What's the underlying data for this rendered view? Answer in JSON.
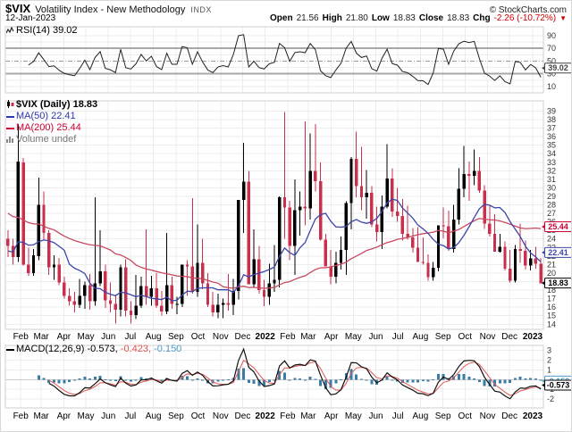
{
  "header": {
    "symbol": "$VIX",
    "name": "Volatility Index - New Methodology",
    "exchange": "INDX",
    "copyright": "© StockCharts.com",
    "date": "12-Jan-2023",
    "quote": {
      "open_label": "Open",
      "open": "21.56",
      "high_label": "High",
      "high": "21.80",
      "low_label": "Low",
      "low": "18.83",
      "close_label": "Close",
      "close": "18.83",
      "chg_label": "Chg",
      "chg": "-2.26 (-10.72%)",
      "chg_arrow": "▼"
    }
  },
  "rsi_panel": {
    "legend": "RSI(14)",
    "value": "39.02"
  },
  "main_panel": {
    "legend_symbol": "$VIX (Daily)",
    "legend_value": "18.83",
    "ma50_label": "MA(50)",
    "ma50_value": "22.41",
    "ma200_label": "MA(200)",
    "ma200_value": "25.44",
    "volume_label": "Volume",
    "volume_value": "undef"
  },
  "macd_panel": {
    "legend": "MACD(12,26,9)",
    "v1": "-0.573,",
    "v2": "-0.423,",
    "v3": "-0.150"
  },
  "colors": {
    "candle_up": "#000000",
    "candle_down": "#c9304e",
    "ma50": "#3e46a8",
    "ma200": "#c9485f",
    "rsi_line": "#222222",
    "macd_line": "#111111",
    "signal_line": "#e05555",
    "histogram": "#3a7ca5",
    "grid": "#ececec",
    "band": "#a8a8a8",
    "frame": "#cfcfcf",
    "axis_text": "#333333",
    "chg_red": "#cc0000",
    "label_rsi_box": "#444444",
    "label_ma200_box": "#cc0033",
    "label_ma50_box": "#3e46a8",
    "label_close_box": "#000000",
    "label_hist_box": "#4f9bc8",
    "label_macd_box": "#000000"
  },
  "chart_data": {
    "type": "candlestick-with-indicators",
    "title": "$VIX Volatility Index - New Methodology",
    "x_range": "mid-Jan-2021 to 12-Jan-2023, weekly bars [open,high,low,close]",
    "main_ylim": [
      14,
      39
    ],
    "rsi_ylim": [
      0,
      100
    ],
    "macd_ylim": [
      -2.9,
      3.5
    ],
    "main_ticks": [
      39,
      38,
      37,
      36,
      35,
      34,
      33,
      32,
      31,
      30,
      29,
      28,
      27,
      26,
      25,
      24,
      23,
      22,
      21,
      20,
      19,
      18,
      17,
      16,
      15,
      14
    ],
    "rsi_ticks": [
      90,
      70,
      50,
      30,
      10
    ],
    "rsi_bands": [
      70,
      30
    ],
    "rsi_mid": 50,
    "macd_ticks": [
      3,
      2,
      1,
      -1,
      -2
    ],
    "months": [
      {
        "label": "Feb",
        "wk": 3.0
      },
      {
        "label": "Mar",
        "wk": 7.0
      },
      {
        "label": "Apr",
        "wk": 11.4
      },
      {
        "label": "May",
        "wk": 15.7
      },
      {
        "label": "Jun",
        "wk": 20.1
      },
      {
        "label": "Jul",
        "wk": 24.4
      },
      {
        "label": "Aug",
        "wk": 28.9
      },
      {
        "label": "Sep",
        "wk": 33.3
      },
      {
        "label": "Oct",
        "wk": 37.6
      },
      {
        "label": "Nov",
        "wk": 42.0
      },
      {
        "label": "Dec",
        "wk": 46.3
      },
      {
        "label": "2022",
        "wk": 50.7,
        "bold": true
      },
      {
        "label": "Feb",
        "wk": 55.1
      },
      {
        "label": "Mar",
        "wk": 59.1
      },
      {
        "label": "Apr",
        "wk": 63.6
      },
      {
        "label": "May",
        "wk": 67.9
      },
      {
        "label": "Jun",
        "wk": 72.3
      },
      {
        "label": "Jul",
        "wk": 76.6
      },
      {
        "label": "Aug",
        "wk": 81.0
      },
      {
        "label": "Sep",
        "wk": 85.4
      },
      {
        "label": "Oct",
        "wk": 89.7
      },
      {
        "label": "Nov",
        "wk": 94.1
      },
      {
        "label": "Dec",
        "wk": 98.4
      },
      {
        "label": "2023",
        "wk": 102.9,
        "bold": true
      }
    ],
    "value_labels": [
      {
        "panel": "rsi",
        "value": 39.02,
        "text": "39.02",
        "color_key": "label_rsi_box"
      },
      {
        "panel": "main",
        "value": 25.44,
        "text": "25.44",
        "color_key": "label_ma200_box"
      },
      {
        "panel": "main",
        "value": 22.41,
        "text": "22.41",
        "color_key": "label_ma50_box"
      },
      {
        "panel": "main",
        "value": 18.83,
        "text": "18.83",
        "color_key": "label_close_box"
      },
      {
        "panel": "macd",
        "value": -0.15,
        "text": "-0.150",
        "color_key": "label_hist_box"
      },
      {
        "panel": "macd",
        "value": -0.573,
        "text": "-0.573",
        "color_key": "label_macd_box"
      }
    ],
    "indicators": {
      "rsi_label": "RSI(14)",
      "rsi_last": 39.02,
      "macd_label": "MACD(12,26,9)",
      "macd_last": -0.573,
      "signal_last": -0.423,
      "hist_last": -0.15,
      "ma50_last": 22.41,
      "ma200_last": 25.44,
      "close_last": 18.83,
      "render_params": {
        "rsi_period": 4,
        "macd_fast": 4,
        "macd_slow": 8,
        "macd_signal": 3,
        "ma_fast_weeks": 10,
        "ma_slow_weeks": 40
      }
    },
    "pre_closes": [
      41.4,
      38.2,
      36.0,
      34.0,
      31.9,
      28.2,
      27.9,
      36.1,
      30.4,
      27.5,
      34.7,
      31.3,
      27.7,
      26.1,
      24.5,
      25.7,
      22.2,
      21.4,
      22.5,
      26.4,
      26.5,
      33.6,
      25.8,
      27.8,
      28.5,
      38.0,
      29.4,
      24.9,
      23.4,
      22.8,
      21.5,
      23.3,
      21.0,
      21.7,
      23.3,
      21.6,
      24.3,
      22.8,
      21.6,
      23.2
    ],
    "candles": [
      [
        24.0,
        25.0,
        21.9,
        23.2
      ],
      [
        23.2,
        24.0,
        21.0,
        21.9
      ],
      [
        21.9,
        37.5,
        21.3,
        33.1
      ],
      [
        33.0,
        33.5,
        20.9,
        21.0
      ],
      [
        21.0,
        23.0,
        19.7,
        20.0
      ],
      [
        20.0,
        22.8,
        19.7,
        22.1
      ],
      [
        22.0,
        31.2,
        21.5,
        28.0
      ],
      [
        28.0,
        29.6,
        23.9,
        24.7
      ],
      [
        24.7,
        25.0,
        19.8,
        20.7
      ],
      [
        20.7,
        22.1,
        19.2,
        21.0
      ],
      [
        21.0,
        21.8,
        18.6,
        18.9
      ],
      [
        18.9,
        19.6,
        17.0,
        17.3
      ],
      [
        17.3,
        18.2,
        16.2,
        16.7
      ],
      [
        16.7,
        17.8,
        15.4,
        16.3
      ],
      [
        16.3,
        19.3,
        15.9,
        17.3
      ],
      [
        17.3,
        19.0,
        15.8,
        18.6
      ],
      [
        18.6,
        19.9,
        15.7,
        16.7
      ],
      [
        16.7,
        28.9,
        16.2,
        18.8
      ],
      [
        18.8,
        25.0,
        18.5,
        20.2
      ],
      [
        20.2,
        21.0,
        15.9,
        16.8
      ],
      [
        16.8,
        18.9,
        15.4,
        16.4
      ],
      [
        16.4,
        17.5,
        14.1,
        15.7
      ],
      [
        15.7,
        21.0,
        14.9,
        20.7
      ],
      [
        20.7,
        21.6,
        14.9,
        15.6
      ],
      [
        15.6,
        16.7,
        14.1,
        15.1
      ],
      [
        15.1,
        19.8,
        14.6,
        16.2
      ],
      [
        16.2,
        19.6,
        15.9,
        18.5
      ],
      [
        18.5,
        25.1,
        16.3,
        17.2
      ],
      [
        17.2,
        19.7,
        16.2,
        18.2
      ],
      [
        18.2,
        20.0,
        15.9,
        16.2
      ],
      [
        16.2,
        17.9,
        15.0,
        15.5
      ],
      [
        15.5,
        24.7,
        15.2,
        18.6
      ],
      [
        18.6,
        19.6,
        15.8,
        16.4
      ],
      [
        16.4,
        17.2,
        15.2,
        16.4
      ],
      [
        16.4,
        21.0,
        16.0,
        21.0
      ],
      [
        21.0,
        21.5,
        17.3,
        20.8
      ],
      [
        20.8,
        28.8,
        17.6,
        17.8
      ],
      [
        17.8,
        25.7,
        17.2,
        21.2
      ],
      [
        21.2,
        24.0,
        18.1,
        18.8
      ],
      [
        18.8,
        20.0,
        16.0,
        16.3
      ],
      [
        16.3,
        17.8,
        14.9,
        15.4
      ],
      [
        15.4,
        17.6,
        14.7,
        16.3
      ],
      [
        16.3,
        17.0,
        14.7,
        16.5
      ],
      [
        16.5,
        19.9,
        15.6,
        16.3
      ],
      [
        16.3,
        19.3,
        15.1,
        17.9
      ],
      [
        17.9,
        28.6,
        16.9,
        28.6
      ],
      [
        28.6,
        35.3,
        24.7,
        30.7
      ],
      [
        30.7,
        32.0,
        18.8,
        18.7
      ],
      [
        18.7,
        25.1,
        18.3,
        21.6
      ],
      [
        21.6,
        23.2,
        17.6,
        18.0
      ],
      [
        18.0,
        19.2,
        16.1,
        17.2
      ],
      [
        17.2,
        21.1,
        16.3,
        18.8
      ],
      [
        18.8,
        23.3,
        17.8,
        19.2
      ],
      [
        19.2,
        29.0,
        18.3,
        28.9
      ],
      [
        28.9,
        38.9,
        24.0,
        27.7
      ],
      [
        27.7,
        28.5,
        21.5,
        23.2
      ],
      [
        23.2,
        31.0,
        19.8,
        27.4
      ],
      [
        27.4,
        29.6,
        24.4,
        27.8
      ],
      [
        27.8,
        37.8,
        25.6,
        27.6
      ],
      [
        27.6,
        36.4,
        26.3,
        32.0
      ],
      [
        32.0,
        37.5,
        29.6,
        30.8
      ],
      [
        30.8,
        33.0,
        23.8,
        23.9
      ],
      [
        23.9,
        24.6,
        20.8,
        20.8
      ],
      [
        20.8,
        22.7,
        18.7,
        19.6
      ],
      [
        19.6,
        22.5,
        18.8,
        21.2
      ],
      [
        21.2,
        24.3,
        20.4,
        22.7
      ],
      [
        22.7,
        28.4,
        19.8,
        28.2
      ],
      [
        28.2,
        33.6,
        25.1,
        33.4
      ],
      [
        33.4,
        36.6,
        28.9,
        30.2
      ],
      [
        30.2,
        34.8,
        27.4,
        28.9
      ],
      [
        28.9,
        32.1,
        26.4,
        29.4
      ],
      [
        29.4,
        30.2,
        25.4,
        25.7
      ],
      [
        25.7,
        27.8,
        23.7,
        24.8
      ],
      [
        24.8,
        29.1,
        22.8,
        27.8
      ],
      [
        27.8,
        35.1,
        27.6,
        31.1
      ],
      [
        31.1,
        32.3,
        26.6,
        27.2
      ],
      [
        27.2,
        30.0,
        26.0,
        26.7
      ],
      [
        26.7,
        28.7,
        23.8,
        24.6
      ],
      [
        24.6,
        27.9,
        23.9,
        24.2
      ],
      [
        24.2,
        25.3,
        22.4,
        23.0
      ],
      [
        23.0,
        25.4,
        21.3,
        21.3
      ],
      [
        21.3,
        24.2,
        21.0,
        21.2
      ],
      [
        21.2,
        22.2,
        19.1,
        19.5
      ],
      [
        19.5,
        21.3,
        19.1,
        20.6
      ],
      [
        20.6,
        25.6,
        20.2,
        25.6
      ],
      [
        25.6,
        27.7,
        24.1,
        25.5
      ],
      [
        25.5,
        27.3,
        22.6,
        22.8
      ],
      [
        22.8,
        28.0,
        22.4,
        26.3
      ],
      [
        26.3,
        32.3,
        25.7,
        29.9
      ],
      [
        29.9,
        34.9,
        28.9,
        31.6
      ],
      [
        31.6,
        33.1,
        28.5,
        31.4
      ],
      [
        31.4,
        34.5,
        30.3,
        32.0
      ],
      [
        32.0,
        33.6,
        29.4,
        29.7
      ],
      [
        29.7,
        30.3,
        25.2,
        25.8
      ],
      [
        25.8,
        27.9,
        24.3,
        24.6
      ],
      [
        24.6,
        26.9,
        22.5,
        22.5
      ],
      [
        22.5,
        24.6,
        22.4,
        23.1
      ],
      [
        23.1,
        23.7,
        20.3,
        20.5
      ],
      [
        20.5,
        22.7,
        18.9,
        19.1
      ],
      [
        19.1,
        23.3,
        18.9,
        22.8
      ],
      [
        22.8,
        25.8,
        21.2,
        22.6
      ],
      [
        22.6,
        23.8,
        20.4,
        20.9
      ],
      [
        20.9,
        22.7,
        20.3,
        21.7
      ],
      [
        21.7,
        23.1,
        20.5,
        21.1
      ],
      [
        21.1,
        21.8,
        18.8,
        18.8
      ]
    ]
  }
}
